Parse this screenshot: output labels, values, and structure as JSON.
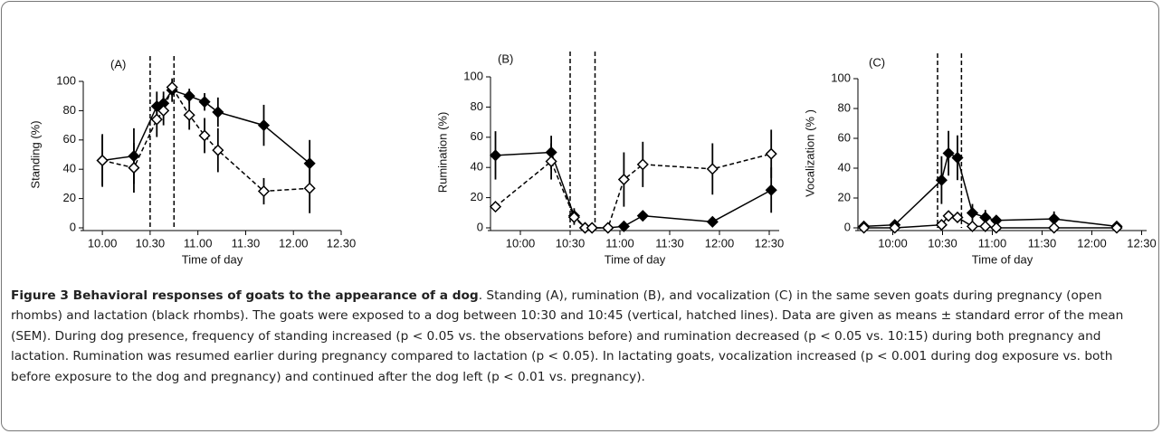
{
  "chart_data": [
    {
      "type": "line",
      "title": "(A)",
      "x_label": "Time of day",
      "y_label": "Standing (%)",
      "x": [
        10.0,
        10.33,
        10.57,
        10.64,
        10.73,
        10.91,
        11.07,
        11.21,
        11.69,
        12.17
      ],
      "series": [
        {
          "color": "#000000",
          "marker_fill": "#000000",
          "line_style": "solid",
          "values": [
            46,
            49,
            83,
            85,
            94,
            90,
            86,
            79,
            70,
            44
          ],
          "errors": [
            17,
            19,
            10,
            8,
            8,
            5,
            6,
            10,
            14,
            16
          ]
        },
        {
          "color": "#000000",
          "marker_fill": "#ffffff",
          "line_style": "dashed",
          "values": [
            46,
            41,
            74,
            80,
            96,
            77,
            63,
            53,
            25,
            27
          ],
          "errors": [
            18,
            17,
            12,
            10,
            3,
            10,
            12,
            15,
            9,
            17
          ]
        }
      ],
      "vlines": [
        10.5,
        10.75
      ],
      "xlim": [
        9.8,
        12.5
      ],
      "xticks": [
        {
          "value": 10.0,
          "label": "10.00"
        },
        {
          "value": 10.5,
          "label": "10.30"
        },
        {
          "value": 11.0,
          "label": "11.00"
        },
        {
          "value": 11.5,
          "label": "11.30"
        },
        {
          "value": 12.0,
          "label": "12.00"
        },
        {
          "value": 12.5,
          "label": "12.30"
        }
      ],
      "ylim": [
        0,
        100
      ],
      "yticks": [
        0,
        20,
        40,
        60,
        80,
        100
      ]
    },
    {
      "type": "line",
      "title": "(B)",
      "x_label": "Time of day",
      "y_label": "Rumination (%)",
      "x": [
        9.75,
        10.31,
        10.54,
        10.65,
        10.72,
        10.88,
        11.04,
        11.23,
        11.93,
        12.52
      ],
      "series": [
        {
          "color": "#000000",
          "marker_fill": "#000000",
          "line_style": "solid",
          "values": [
            48,
            50,
            8,
            0,
            0,
            0,
            1,
            8,
            4,
            25
          ],
          "errors": [
            16,
            11,
            5,
            0,
            0,
            0,
            1,
            3,
            2,
            15
          ]
        },
        {
          "color": "#000000",
          "marker_fill": "#ffffff",
          "line_style": "dashed",
          "values": [
            14,
            44,
            7,
            0,
            0,
            0,
            32,
            42,
            39,
            49
          ],
          "errors": [
            3,
            12,
            5,
            0,
            0,
            0,
            18,
            15,
            17,
            16
          ]
        }
      ],
      "vlines": [
        10.5,
        10.75
      ],
      "xlim": [
        9.7,
        12.6
      ],
      "xticks": [
        {
          "value": 10.0,
          "label": "10:00"
        },
        {
          "value": 10.5,
          "label": "10:30"
        },
        {
          "value": 11.0,
          "label": "11:00"
        },
        {
          "value": 11.5,
          "label": "11:30"
        },
        {
          "value": 12.0,
          "label": "12:00"
        },
        {
          "value": 12.5,
          "label": "12:30"
        }
      ],
      "ylim": [
        0,
        100
      ],
      "yticks": [
        0,
        20,
        40,
        60,
        80,
        100
      ]
    },
    {
      "type": "line",
      "title": "(C)",
      "x_label": "Time of day",
      "y_label": "Vocalization (% )",
      "x": [
        9.71,
        10.02,
        10.49,
        10.56,
        10.65,
        10.8,
        10.93,
        11.04,
        11.62,
        12.25
      ],
      "series": [
        {
          "color": "#000000",
          "marker_fill": "#000000",
          "line_style": "solid",
          "values": [
            1,
            2,
            32,
            50,
            47,
            10,
            7,
            5,
            6,
            1
          ],
          "errors": [
            1,
            2,
            16,
            15,
            15,
            6,
            5,
            3,
            5,
            1
          ]
        },
        {
          "color": "#000000",
          "marker_fill": "#ffffff",
          "line_style": "solid",
          "values": [
            0,
            0,
            2,
            8,
            7,
            1,
            1,
            0,
            0,
            0
          ],
          "errors": [
            0,
            0,
            1,
            3,
            3,
            1,
            1,
            0,
            0,
            0
          ]
        }
      ],
      "vlines": [
        10.45,
        10.69
      ],
      "xlim": [
        9.65,
        12.55
      ],
      "xticks": [
        {
          "value": 10.0,
          "label": "10:00"
        },
        {
          "value": 10.5,
          "label": "10:30"
        },
        {
          "value": 11.0,
          "label": "11:00"
        },
        {
          "value": 11.5,
          "label": "11:30"
        },
        {
          "value": 12.0,
          "label": "12:00"
        },
        {
          "value": 12.5,
          "label": "12:30"
        }
      ],
      "ylim": [
        0,
        100
      ],
      "yticks": [
        0,
        20,
        40,
        60,
        80,
        100
      ]
    }
  ],
  "caption": {
    "title": "Figure 3 Behavioral responses of goats to the appearance of a dog",
    "text": ". Standing (A), rumination (B), and vocalization (C) in the same seven goats during pregnancy (open rhombs) and lactation (black rhombs). The goats were exposed to a dog between 10:30 and 10:45 (vertical, hatched lines). Data are given as means ± standard error of the mean (SEM). During dog presence, frequency of standing increased (p < 0.05 vs. the observations before) and rumination decreased (p < 0.05 vs. 10:15) during both pregnancy and lactation. Rumination was resumed earlier during pregnancy compared to lactation (p < 0.05). In lactating goats, vocalization increased (p < 0.001 during dog exposure vs. both before exposure to the dog and pregnancy) and continued after the dog left (p < 0.01 vs. pregnancy)."
  }
}
